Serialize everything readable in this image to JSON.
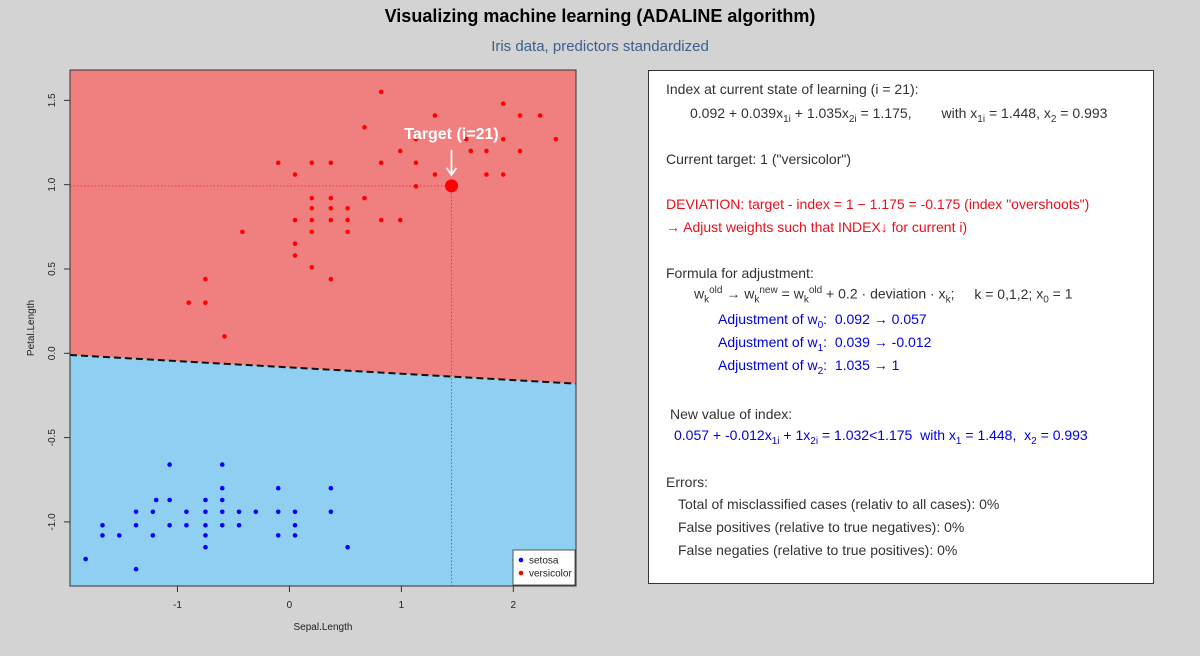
{
  "title": "Visualizing machine learning (ADALINE algorithm)",
  "subtitle": "Iris data, predictors standardized",
  "chart_data": {
    "type": "scatter",
    "xlabel": "Sepal.Length",
    "ylabel": "Petal.Length",
    "xlim": [
      -1.96,
      2.56
    ],
    "ylim": [
      -1.38,
      1.68
    ],
    "x_ticks": [
      -1,
      0,
      1,
      2
    ],
    "y_ticks": [
      -1.0,
      -0.5,
      0.0,
      0.5,
      1.0,
      1.5
    ],
    "x_tick_labels": [
      "-1",
      "0",
      "1",
      "2"
    ],
    "y_tick_labels": [
      "-1.0",
      "-0.5",
      "0.0",
      "0.5",
      "1.0",
      "1.5"
    ],
    "grid": false,
    "legend_position": "bottom-right",
    "region_colors": {
      "versicolor": "#f08080",
      "setosa": "#8fd0f2"
    },
    "decision_boundary": {
      "points": [
        [
          -1.96,
          -0.01
        ],
        [
          2.56,
          -0.18
        ]
      ],
      "style": "dashed"
    },
    "target": {
      "label": "Target (i=21)",
      "x": 1.448,
      "y": 0.993,
      "color": "#ff0000"
    },
    "series": [
      {
        "name": "setosa",
        "color": "#0000ff",
        "points": [
          [
            -1.82,
            -1.22
          ],
          [
            -1.67,
            -1.02
          ],
          [
            -1.67,
            -1.08
          ],
          [
            -1.52,
            -1.08
          ],
          [
            -1.37,
            -0.94
          ],
          [
            -1.37,
            -1.02
          ],
          [
            -1.37,
            -1.28
          ],
          [
            -1.22,
            -1.08
          ],
          [
            -1.22,
            -0.94
          ],
          [
            -1.19,
            -0.87
          ],
          [
            -1.07,
            -0.66
          ],
          [
            -1.07,
            -0.87
          ],
          [
            -1.07,
            -1.02
          ],
          [
            -0.92,
            -0.94
          ],
          [
            -0.92,
            -1.02
          ],
          [
            -0.75,
            -0.87
          ],
          [
            -0.75,
            -0.94
          ],
          [
            -0.75,
            -1.02
          ],
          [
            -0.75,
            -1.08
          ],
          [
            -0.75,
            -1.15
          ],
          [
            -0.6,
            -0.66
          ],
          [
            -0.6,
            -0.8
          ],
          [
            -0.6,
            -0.87
          ],
          [
            -0.6,
            -0.94
          ],
          [
            -0.6,
            -1.02
          ],
          [
            -0.45,
            -0.94
          ],
          [
            -0.45,
            -1.02
          ],
          [
            -0.3,
            -0.94
          ],
          [
            -0.1,
            -0.8
          ],
          [
            -0.1,
            -0.94
          ],
          [
            -0.1,
            -1.08
          ],
          [
            0.05,
            -0.94
          ],
          [
            0.05,
            -1.02
          ],
          [
            0.05,
            -1.08
          ],
          [
            0.37,
            -0.8
          ],
          [
            0.37,
            -0.94
          ],
          [
            0.52,
            -1.15
          ]
        ]
      },
      {
        "name": "versicolor",
        "color": "#ff0000",
        "points": [
          [
            -0.9,
            0.3
          ],
          [
            -0.75,
            0.44
          ],
          [
            -0.75,
            0.3
          ],
          [
            -0.58,
            0.1
          ],
          [
            -0.42,
            0.72
          ],
          [
            -0.1,
            1.13
          ],
          [
            0.05,
            1.06
          ],
          [
            0.05,
            0.79
          ],
          [
            0.05,
            0.65
          ],
          [
            0.05,
            0.58
          ],
          [
            0.2,
            1.13
          ],
          [
            0.2,
            0.92
          ],
          [
            0.2,
            0.86
          ],
          [
            0.2,
            0.79
          ],
          [
            0.2,
            0.72
          ],
          [
            0.2,
            0.51
          ],
          [
            0.37,
            1.13
          ],
          [
            0.37,
            0.92
          ],
          [
            0.37,
            0.86
          ],
          [
            0.37,
            0.79
          ],
          [
            0.37,
            0.44
          ],
          [
            0.52,
            0.86
          ],
          [
            0.52,
            0.79
          ],
          [
            0.52,
            0.72
          ],
          [
            0.67,
            1.34
          ],
          [
            0.67,
            0.92
          ],
          [
            0.82,
            1.55
          ],
          [
            0.82,
            1.13
          ],
          [
            0.82,
            0.79
          ],
          [
            0.99,
            1.2
          ],
          [
            0.99,
            0.79
          ],
          [
            1.13,
            1.27
          ],
          [
            1.13,
            1.13
          ],
          [
            1.13,
            0.99
          ],
          [
            1.3,
            1.41
          ],
          [
            1.3,
            1.06
          ],
          [
            1.58,
            1.27
          ],
          [
            1.62,
            1.2
          ],
          [
            1.76,
            1.06
          ],
          [
            1.76,
            1.2
          ],
          [
            1.91,
            1.48
          ],
          [
            1.91,
            1.27
          ],
          [
            1.91,
            1.06
          ],
          [
            2.06,
            1.2
          ],
          [
            2.06,
            1.41
          ],
          [
            2.24,
            1.41
          ],
          [
            2.38,
            1.27
          ]
        ]
      }
    ]
  },
  "panel": {
    "index_header": "Index at current state of learning (i = 21):",
    "index_formula": {
      "c0": "0.092",
      "c1": "0.039",
      "c2": "1.035",
      "value": "1.175",
      "with": "with",
      "x1": "1.448",
      "x2": "0.993"
    },
    "current_target": "Current target: 1 (\"versicolor\")",
    "deviation": "DEVIATION: target - index = 1 − 1.175 = -0.175 (index \"overshoots\")",
    "adjust_note": "→ Adjust weights such that INDEX↓ for current i)",
    "formula_header": "Formula for adjustment:",
    "formula": {
      "rate": "0.2",
      "deviation_word": "deviation",
      "k_range": "k = 0,1,2;",
      "x0": "1"
    },
    "adjustments": [
      {
        "w": "0",
        "old": "0.092",
        "new": "0.057"
      },
      {
        "w": "1",
        "old": "0.039",
        "new": "-0.012"
      },
      {
        "w": "2",
        "old": "1.035",
        "new": "1"
      }
    ],
    "new_index_header": "New value of index:",
    "new_index": {
      "c0": "0.057",
      "c1": "-0.012",
      "c2": "1",
      "value": "1.032",
      "old_value": "1.175",
      "x1": "1.448",
      "x2": "0.993"
    },
    "errors_header": "Errors:",
    "errors": [
      "Total of misclassified cases (relativ to all cases): 0%",
      "False positives (relative to true negatives): 0%",
      "False negaties (relative to true positives): 0%"
    ]
  }
}
